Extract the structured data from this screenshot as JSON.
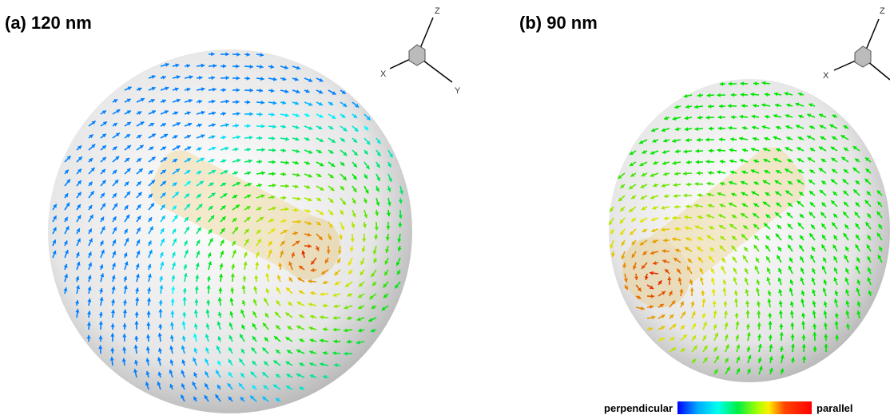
{
  "panels": [
    {
      "title": "(a) 120 nm",
      "axes": {
        "z": "Z",
        "x": "X",
        "y": "Y"
      }
    },
    {
      "title": "(b) 90 nm",
      "axes": {
        "z": "Z",
        "x": "X"
      }
    }
  ],
  "colorbar": {
    "low": "perpendicular",
    "high": "parallel"
  }
}
